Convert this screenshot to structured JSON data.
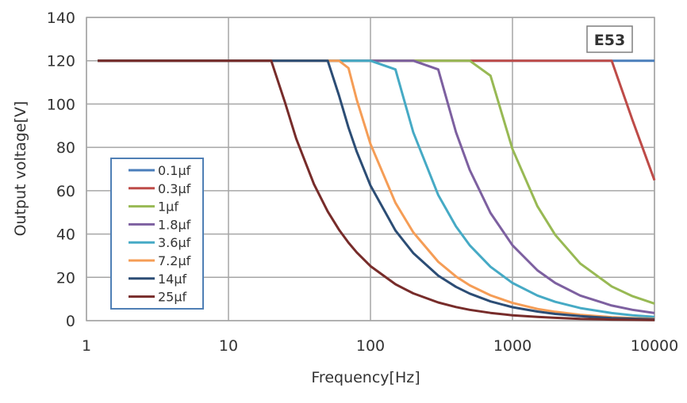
{
  "chart_data": {
    "type": "line",
    "title": "",
    "badge": "E53",
    "xlabel": "Frequency[Hz]",
    "ylabel": "Output voltage[V]",
    "xscale": "log",
    "xlim": [
      1,
      10000
    ],
    "ylim": [
      0,
      140
    ],
    "xticks": [
      "1",
      "10",
      "100",
      "1000",
      "10000"
    ],
    "yticks": [
      "0",
      "20",
      "40",
      "60",
      "80",
      "100",
      "120",
      "140"
    ],
    "grid": true,
    "legend_placement": "left-middle",
    "x": [
      1.2,
      2,
      5,
      10,
      15,
      20,
      25,
      30,
      40,
      50,
      60,
      70,
      80,
      100,
      150,
      200,
      300,
      400,
      500,
      700,
      1000,
      1500,
      2000,
      3000,
      5000,
      7000,
      10000
    ],
    "series": [
      {
        "name": "0.1μf",
        "color": "#4a7ebb",
        "values": [
          120,
          120,
          120,
          120,
          120,
          120,
          120,
          120,
          120,
          120,
          120,
          120,
          120,
          120,
          120,
          120,
          120,
          120,
          120,
          120,
          120,
          120,
          120,
          120,
          120,
          120,
          120
        ]
      },
      {
        "name": "0.3μf",
        "color": "#be4b48",
        "values": [
          120,
          120,
          120,
          120,
          120,
          120,
          120,
          120,
          120,
          120,
          120,
          120,
          120,
          120,
          120,
          120,
          120,
          120,
          120,
          120,
          120,
          120,
          120,
          120,
          120,
          92.6,
          64.8
        ]
      },
      {
        "name": "1μf",
        "color": "#98b954",
        "values": [
          120,
          120,
          120,
          120,
          120,
          120,
          120,
          120,
          120,
          120,
          120,
          120,
          120,
          120,
          120,
          120,
          120,
          120,
          120,
          113.1,
          79.2,
          52.8,
          39.6,
          26.4,
          15.8,
          11.3,
          7.9
        ]
      },
      {
        "name": "1.8μf",
        "color": "#7d60a0",
        "values": [
          120,
          120,
          120,
          120,
          120,
          120,
          120,
          120,
          120,
          120,
          120,
          120,
          120,
          120,
          120,
          120,
          116,
          87,
          69.6,
          49.7,
          34.8,
          23.2,
          17.4,
          11.6,
          7,
          5,
          3.5
        ]
      },
      {
        "name": "3.6μf",
        "color": "#46aac5",
        "values": [
          120,
          120,
          120,
          120,
          120,
          120,
          120,
          120,
          120,
          120,
          120,
          120,
          120,
          120,
          116,
          87,
          58,
          43.5,
          34.8,
          24.9,
          17.4,
          11.6,
          8.7,
          5.8,
          3.5,
          2.5,
          1.7
        ]
      },
      {
        "name": "7.2μf",
        "color": "#f59d56",
        "values": [
          120,
          120,
          120,
          120,
          120,
          120,
          120,
          120,
          120,
          120,
          120,
          116.6,
          102,
          81.6,
          54.4,
          40.8,
          27.2,
          20.4,
          16.3,
          11.7,
          8.2,
          5.4,
          4.1,
          2.7,
          1.6,
          1.2,
          0.8
        ]
      },
      {
        "name": "14μf",
        "color": "#2c4d75",
        "values": [
          120,
          120,
          120,
          120,
          120,
          120,
          120,
          120,
          120,
          120,
          104,
          89.1,
          78,
          62.4,
          41.6,
          31.2,
          20.8,
          15.6,
          12.5,
          8.9,
          6.2,
          4.2,
          3.1,
          2.1,
          1.2,
          0.9,
          0.6
        ]
      },
      {
        "name": "25μf",
        "color": "#772c2a",
        "values": [
          120,
          120,
          120,
          120,
          120,
          120,
          100.8,
          84,
          63,
          50.4,
          42,
          36,
          31.5,
          25.2,
          16.8,
          12.6,
          8.4,
          6.3,
          5,
          3.6,
          2.5,
          1.7,
          1.3,
          0.8,
          0.5,
          0.4,
          0.3
        ]
      }
    ]
  }
}
